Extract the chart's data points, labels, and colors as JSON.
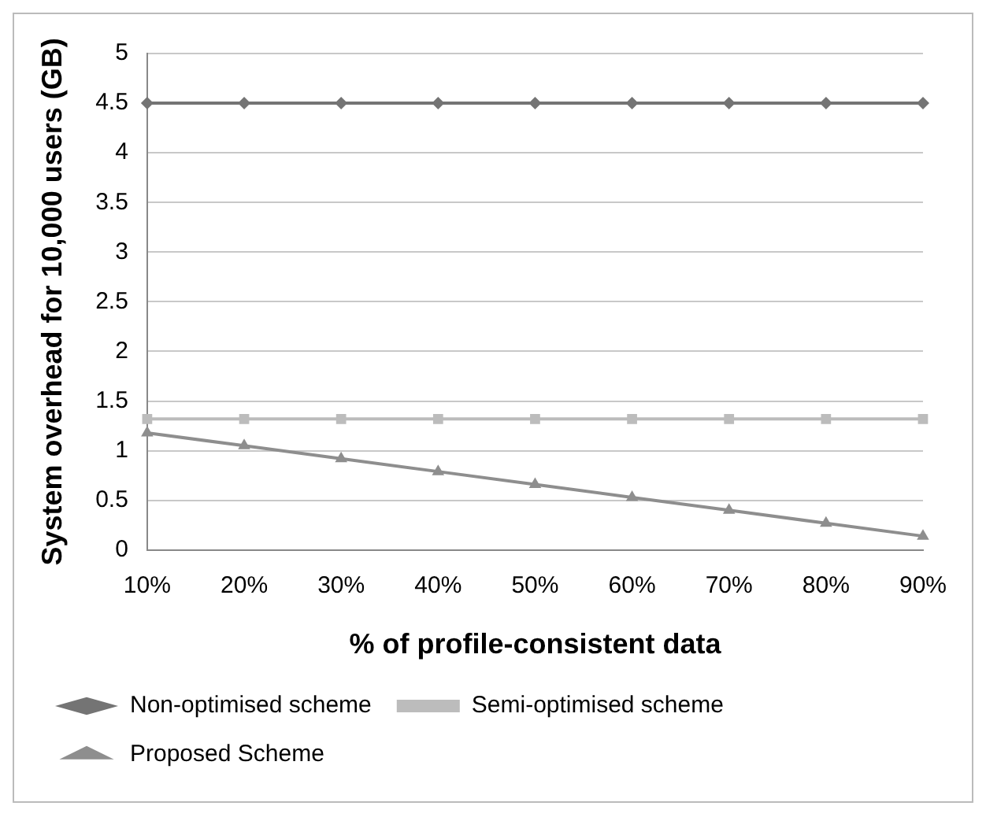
{
  "chart_data": {
    "type": "line",
    "xlabel": "% of profile-consistent data",
    "ylabel": "System overhead for 10,000 users (GB)",
    "categories": [
      "10%",
      "20%",
      "30%",
      "40%",
      "50%",
      "60%",
      "70%",
      "80%",
      "90%"
    ],
    "series": [
      {
        "name": "Non-optimised scheme",
        "color": "#747474",
        "marker": "diamond",
        "values": [
          4.5,
          4.5,
          4.5,
          4.5,
          4.5,
          4.5,
          4.5,
          4.5,
          4.5
        ]
      },
      {
        "name": "Semi-optimised scheme",
        "color": "#bcbcbc",
        "marker": "square",
        "values": [
          1.32,
          1.32,
          1.32,
          1.32,
          1.32,
          1.32,
          1.32,
          1.32,
          1.32
        ]
      },
      {
        "name": "Proposed Scheme",
        "color": "#8e8e8e",
        "marker": "triangle",
        "values": [
          1.18,
          1.05,
          0.92,
          0.79,
          0.66,
          0.53,
          0.4,
          0.27,
          0.14
        ]
      }
    ],
    "ylim": [
      0,
      5
    ],
    "yticks": [
      0,
      0.5,
      1,
      1.5,
      2,
      2.5,
      3,
      3.5,
      4,
      4.5,
      5
    ],
    "grid": "y",
    "legend": "bottom",
    "line_style": "solid"
  }
}
